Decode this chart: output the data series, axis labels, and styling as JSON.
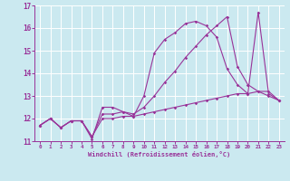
{
  "xlabel": "Windchill (Refroidissement éolien,°C)",
  "background_color": "#cbe9f0",
  "line_color": "#993399",
  "grid_color": "#ffffff",
  "xlim": [
    -0.5,
    23.5
  ],
  "ylim": [
    11.0,
    17.0
  ],
  "yticks": [
    11,
    12,
    13,
    14,
    15,
    16,
    17
  ],
  "xticks": [
    0,
    1,
    2,
    3,
    4,
    5,
    6,
    7,
    8,
    9,
    10,
    11,
    12,
    13,
    14,
    15,
    16,
    17,
    18,
    19,
    20,
    21,
    22,
    23
  ],
  "series": [
    {
      "x": [
        0,
        1,
        2,
        3,
        4,
        5,
        6,
        7,
        8,
        9,
        10,
        11,
        12,
        13,
        14,
        15,
        16,
        17,
        18,
        19,
        20,
        21,
        22,
        23
      ],
      "y": [
        11.7,
        12.0,
        11.6,
        11.9,
        11.9,
        11.1,
        12.5,
        12.5,
        12.3,
        12.1,
        13.0,
        14.9,
        15.5,
        15.8,
        16.2,
        16.3,
        16.1,
        15.6,
        14.2,
        13.5,
        13.1,
        16.7,
        13.1,
        12.8
      ]
    },
    {
      "x": [
        0,
        1,
        2,
        3,
        4,
        5,
        6,
        7,
        8,
        9,
        10,
        11,
        12,
        13,
        14,
        15,
        16,
        17,
        18,
        19,
        20,
        21,
        22,
        23
      ],
      "y": [
        11.7,
        12.0,
        11.6,
        11.9,
        11.9,
        11.2,
        12.0,
        12.0,
        12.1,
        12.1,
        12.2,
        12.3,
        12.4,
        12.5,
        12.6,
        12.7,
        12.8,
        12.9,
        13.0,
        13.1,
        13.1,
        13.2,
        13.2,
        12.8
      ]
    },
    {
      "x": [
        0,
        1,
        2,
        3,
        4,
        5,
        6,
        7,
        8,
        9,
        10,
        11,
        12,
        13,
        14,
        15,
        16,
        17,
        18,
        19,
        20,
        21,
        22,
        23
      ],
      "y": [
        11.7,
        12.0,
        11.6,
        11.9,
        11.9,
        11.2,
        12.2,
        12.2,
        12.3,
        12.2,
        12.5,
        13.0,
        13.6,
        14.1,
        14.7,
        15.2,
        15.7,
        16.1,
        16.5,
        14.3,
        13.5,
        13.2,
        13.0,
        12.8
      ]
    }
  ]
}
